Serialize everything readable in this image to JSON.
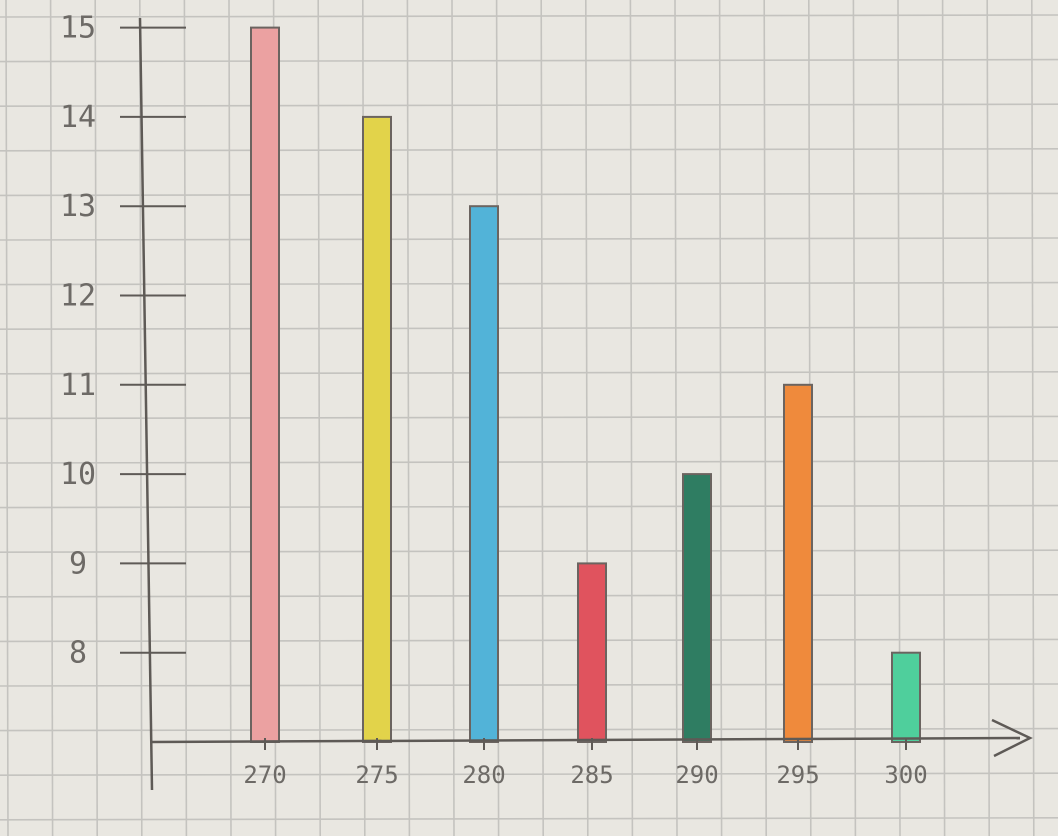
{
  "chart_data": {
    "type": "bar",
    "title": "",
    "xlabel": "",
    "ylabel": "",
    "categories": [
      "270",
      "275",
      "280",
      "285",
      "290",
      "295",
      "300"
    ],
    "values": [
      15,
      14,
      13,
      9,
      10,
      11,
      8
    ],
    "yticks": [
      8,
      9,
      10,
      11,
      12,
      13,
      14,
      15
    ],
    "ylim": [
      7,
      15
    ],
    "grid": true,
    "colors": [
      "#eba1a1",
      "#e2d34a",
      "#52b3d8",
      "#e0535e",
      "#2f7d62",
      "#ef8a3c",
      "#4fcf9c"
    ],
    "paper_color": "#e9e7e1",
    "grid_color": "#c4c3bf",
    "axis_color": "#5e5a56"
  }
}
